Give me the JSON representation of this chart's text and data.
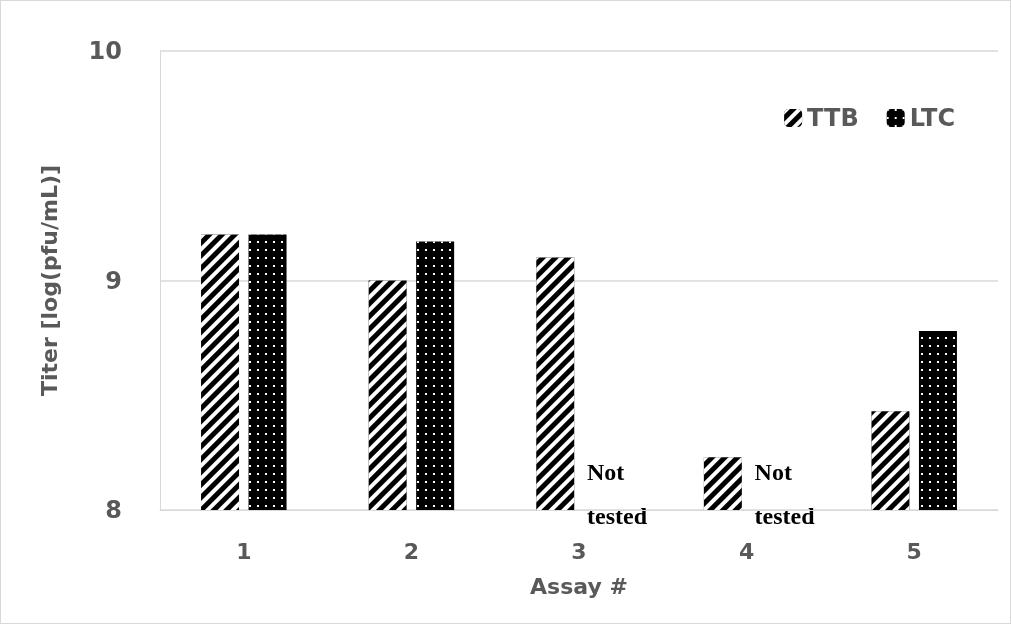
{
  "chart_data": {
    "type": "bar",
    "xlabel": "Assay #",
    "ylabel": "Titer [log(pfu/mL)]",
    "categories": [
      "1",
      "2",
      "3",
      "4",
      "5"
    ],
    "series": [
      {
        "name": "TTB",
        "color": "#000000",
        "values": [
          9.2,
          9.0,
          9.1,
          8.23,
          8.43
        ]
      },
      {
        "name": "LTC",
        "color": "#000000",
        "values": [
          9.2,
          9.17,
          null,
          null,
          8.78
        ]
      }
    ],
    "ylim": [
      8,
      10
    ],
    "yticks": [
      8,
      9,
      10
    ],
    "grid": "y",
    "legend": "top right",
    "annotations": [
      {
        "text": "Not tested",
        "x": "3",
        "y": 8
      },
      {
        "text": "Not tested",
        "x": "4",
        "y": 8
      }
    ]
  }
}
